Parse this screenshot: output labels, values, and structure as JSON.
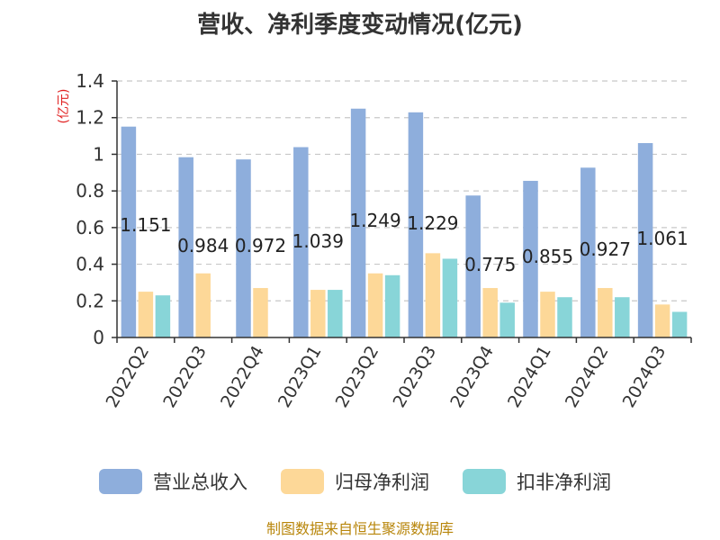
{
  "chart_data": {
    "type": "bar",
    "title": "营收、净利季度变动情况(亿元)",
    "ylabel": "(亿元)",
    "xlabel": "",
    "ylim": [
      0,
      1.4
    ],
    "yticks": [
      "0",
      "0.2",
      "0.4",
      "0.6",
      "0.8",
      "1",
      "1.2",
      "1.4"
    ],
    "grid": true,
    "legend_position": "bottom",
    "categories": [
      "2022Q2",
      "2022Q3",
      "2022Q4",
      "2023Q1",
      "2023Q2",
      "2023Q3",
      "2023Q4",
      "2024Q1",
      "2024Q2",
      "2024Q3"
    ],
    "series": [
      {
        "name": "营业总收入",
        "color": "#8eaedc",
        "values": [
          1.151,
          0.984,
          0.972,
          1.039,
          1.249,
          1.229,
          0.775,
          0.855,
          0.927,
          1.061
        ],
        "labels": [
          "1.151",
          "0.984",
          "0.972",
          "1.039",
          "1.249",
          "1.229",
          "0.775",
          "0.855",
          "0.927",
          "1.061"
        ]
      },
      {
        "name": "归母净利润",
        "color": "#fdd898",
        "values": [
          0.25,
          0.35,
          0.27,
          0.26,
          0.35,
          0.46,
          0.27,
          0.25,
          0.27,
          0.18
        ]
      },
      {
        "name": "扣非净利润",
        "color": "#88d5d8",
        "values": [
          0.23,
          null,
          null,
          0.26,
          0.34,
          0.43,
          0.19,
          0.22,
          0.22,
          0.14
        ]
      }
    ]
  },
  "footer": {
    "source": "制图数据来自恒生聚源数据库"
  }
}
